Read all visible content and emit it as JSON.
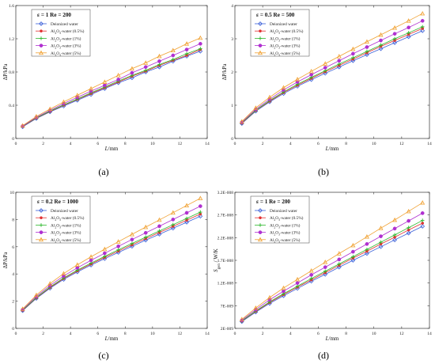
{
  "colors": {
    "Deionized water": "#3a5fd8",
    "Al2O3-water (0.5%)": "#e23030",
    "Al2O3-water (1%)": "#2db82d",
    "Al2O3-water (3%)": "#b030d0",
    "Al2O3-water (5%)": "#f0a030"
  },
  "markers": [
    "diamond",
    "star",
    "cross",
    "circle",
    "triangle"
  ],
  "chart_data": [
    {
      "type": "line",
      "caption": "(a)",
      "legend_title": "ε = 1   Re = 200",
      "xlabel": "L/mm",
      "ylabel": "ΔP/kPa",
      "xlim": [
        0,
        14
      ],
      "ylim": [
        0,
        1.6
      ],
      "xticks": [
        "0",
        "2",
        "4",
        "6",
        "8",
        "10",
        "12",
        "14"
      ],
      "yticks": [
        "0",
        "0.4",
        "0.8",
        "1.2",
        "1.6"
      ],
      "x": [
        0.5,
        1.5,
        2.5,
        3.5,
        4.5,
        5.5,
        6.5,
        7.5,
        8.5,
        9.5,
        10.5,
        11.5,
        12.5,
        13.5
      ],
      "series": [
        {
          "name": "Deionized water",
          "values": [
            0.14,
            0.24,
            0.32,
            0.39,
            0.46,
            0.53,
            0.6,
            0.67,
            0.73,
            0.8,
            0.86,
            0.93,
            0.99,
            1.05
          ]
        },
        {
          "name": "Al2O3-water (0.5%)",
          "values": [
            0.145,
            0.245,
            0.325,
            0.4,
            0.47,
            0.54,
            0.61,
            0.68,
            0.75,
            0.81,
            0.88,
            0.94,
            1.0,
            1.07
          ]
        },
        {
          "name": "Al2O3-water (1%)",
          "values": [
            0.147,
            0.248,
            0.33,
            0.405,
            0.475,
            0.55,
            0.62,
            0.69,
            0.76,
            0.82,
            0.89,
            0.95,
            1.02,
            1.08
          ]
        },
        {
          "name": "Al2O3-water (3%)",
          "values": [
            0.15,
            0.255,
            0.34,
            0.42,
            0.495,
            0.57,
            0.64,
            0.71,
            0.79,
            0.86,
            0.93,
            1.0,
            1.07,
            1.14
          ]
        },
        {
          "name": "Al2O3-water (5%)",
          "values": [
            0.155,
            0.265,
            0.355,
            0.44,
            0.52,
            0.6,
            0.68,
            0.76,
            0.84,
            0.91,
            0.99,
            1.06,
            1.14,
            1.21
          ]
        }
      ]
    },
    {
      "type": "line",
      "caption": "(b)",
      "legend_title": "ε = 0.5   Re = 500",
      "xlabel": "L/mm",
      "ylabel": "ΔP/kPa",
      "xlim": [
        0,
        14
      ],
      "ylim": [
        0,
        4
      ],
      "xticks": [
        "0",
        "2",
        "4",
        "6",
        "8",
        "10",
        "12",
        "14"
      ],
      "yticks": [
        "0",
        "1",
        "2",
        "3",
        "4"
      ],
      "x": [
        0.5,
        1.5,
        2.5,
        3.5,
        4.5,
        5.5,
        6.5,
        7.5,
        8.5,
        9.5,
        10.5,
        11.5,
        12.5,
        13.5
      ],
      "series": [
        {
          "name": "Deionized water",
          "values": [
            0.45,
            0.82,
            1.1,
            1.35,
            1.57,
            1.77,
            1.96,
            2.15,
            2.34,
            2.52,
            2.7,
            2.88,
            3.06,
            3.24
          ]
        },
        {
          "name": "Al2O3-water (0.5%)",
          "values": [
            0.46,
            0.84,
            1.12,
            1.38,
            1.6,
            1.81,
            2.01,
            2.2,
            2.39,
            2.58,
            2.77,
            2.95,
            3.13,
            3.31
          ]
        },
        {
          "name": "Al2O3-water (1%)",
          "values": [
            0.47,
            0.85,
            1.14,
            1.4,
            1.63,
            1.84,
            2.04,
            2.24,
            2.43,
            2.62,
            2.81,
            3.0,
            3.18,
            3.36
          ]
        },
        {
          "name": "Al2O3-water (3%)",
          "values": [
            0.49,
            0.88,
            1.18,
            1.46,
            1.7,
            1.92,
            2.13,
            2.34,
            2.55,
            2.75,
            2.95,
            3.15,
            3.34,
            3.54
          ]
        },
        {
          "name": "Al2O3-water (5%)",
          "values": [
            0.51,
            0.92,
            1.24,
            1.53,
            1.78,
            2.02,
            2.25,
            2.47,
            2.69,
            2.91,
            3.12,
            3.33,
            3.54,
            3.76
          ]
        }
      ]
    },
    {
      "type": "line",
      "caption": "(c)",
      "legend_title": "ε = 0.2   Re = 1000",
      "xlabel": "L/mm",
      "ylabel": "ΔP/kPa",
      "xlim": [
        0,
        14
      ],
      "ylim": [
        0,
        10
      ],
      "xticks": [
        "0",
        "2",
        "4",
        "6",
        "8",
        "10",
        "12",
        "14"
      ],
      "yticks": [
        "0",
        "2",
        "4",
        "6",
        "8",
        "10"
      ],
      "x": [
        0.5,
        1.5,
        2.5,
        3.5,
        4.5,
        5.5,
        6.5,
        7.5,
        8.5,
        9.5,
        10.5,
        11.5,
        12.5,
        13.5
      ],
      "series": [
        {
          "name": "Deionized water",
          "values": [
            1.3,
            2.2,
            2.95,
            3.6,
            4.15,
            4.65,
            5.12,
            5.58,
            6.03,
            6.48,
            6.92,
            7.36,
            7.8,
            8.24
          ]
        },
        {
          "name": "Al2O3-water (0.5%)",
          "values": [
            1.32,
            2.24,
            3.0,
            3.66,
            4.22,
            4.73,
            5.21,
            5.68,
            6.14,
            6.6,
            7.05,
            7.5,
            7.95,
            8.4
          ]
        },
        {
          "name": "Al2O3-water (1%)",
          "values": [
            1.34,
            2.27,
            3.04,
            3.71,
            4.28,
            4.8,
            5.29,
            5.77,
            6.24,
            6.7,
            7.16,
            7.62,
            8.08,
            8.54
          ]
        },
        {
          "name": "Al2O3-water (3%)",
          "values": [
            1.38,
            2.35,
            3.15,
            3.85,
            4.45,
            5.0,
            5.52,
            6.03,
            6.53,
            7.02,
            7.51,
            8.0,
            8.49,
            8.98
          ]
        },
        {
          "name": "Al2O3-water (5%)",
          "values": [
            1.43,
            2.45,
            3.29,
            4.03,
            4.67,
            5.26,
            5.82,
            6.37,
            6.91,
            7.44,
            7.97,
            8.5,
            9.03,
            9.56
          ]
        }
      ]
    },
    {
      "type": "line",
      "caption": "(d)",
      "legend_title": "ε = 1   Re = 200",
      "xlabel": "L/mm",
      "ylabel": "S_gen / W/K",
      "xlim": [
        0,
        14
      ],
      "ylim": [
        2e-09,
        3.2e-08
      ],
      "xticks": [
        "0",
        "2",
        "4",
        "6",
        "8",
        "10",
        "12",
        "14"
      ],
      "ytick_values": [
        2e-09,
        7e-09,
        1.2e-08,
        1.7e-08,
        2.2e-08,
        2.7e-08,
        3.2e-08
      ],
      "yticks": [
        "2E-009",
        "7E-009",
        "1.2E-008",
        "1.7E-008",
        "2.2E-008",
        "2.7E-008",
        "3.2E-008"
      ],
      "x": [
        0.5,
        1.5,
        2.5,
        3.5,
        4.5,
        5.5,
        6.5,
        7.5,
        8.5,
        9.5,
        10.5,
        11.5,
        12.5,
        13.5
      ],
      "series": [
        {
          "name": "Deionized water",
          "values": [
            3.5e-09,
            5.6e-09,
            7.5e-09,
            9.2e-09,
            1.08e-08,
            1.24e-08,
            1.39e-08,
            1.55e-08,
            1.7e-08,
            1.85e-08,
            2e-08,
            2.15e-08,
            2.3e-08,
            2.45e-08
          ]
        },
        {
          "name": "Al2O3-water (0.5%)",
          "values": [
            3.6e-09,
            5.75e-09,
            7.7e-09,
            9.45e-09,
            1.11e-08,
            1.27e-08,
            1.43e-08,
            1.59e-08,
            1.75e-08,
            1.9e-08,
            2.06e-08,
            2.21e-08,
            2.37e-08,
            2.52e-08
          ]
        },
        {
          "name": "Al2O3-water (1%)",
          "values": [
            3.65e-09,
            5.85e-09,
            7.85e-09,
            9.65e-09,
            1.13e-08,
            1.3e-08,
            1.46e-08,
            1.62e-08,
            1.78e-08,
            1.94e-08,
            2.1e-08,
            2.26e-08,
            2.42e-08,
            2.58e-08
          ]
        },
        {
          "name": "Al2O3-water (3%)",
          "values": [
            3.8e-09,
            6.15e-09,
            8.3e-09,
            1.02e-08,
            1.2e-08,
            1.38e-08,
            1.55e-08,
            1.72e-08,
            1.89e-08,
            2.06e-08,
            2.23e-08,
            2.4e-08,
            2.57e-08,
            2.74e-08
          ]
        },
        {
          "name": "Al2O3-water (5%)",
          "values": [
            4e-09,
            6.5e-09,
            8.8e-09,
            1.09e-08,
            1.28e-08,
            1.47e-08,
            1.66e-08,
            1.85e-08,
            2.03e-08,
            2.22e-08,
            2.41e-08,
            2.59e-08,
            2.78e-08,
            2.97e-08
          ]
        }
      ]
    }
  ]
}
